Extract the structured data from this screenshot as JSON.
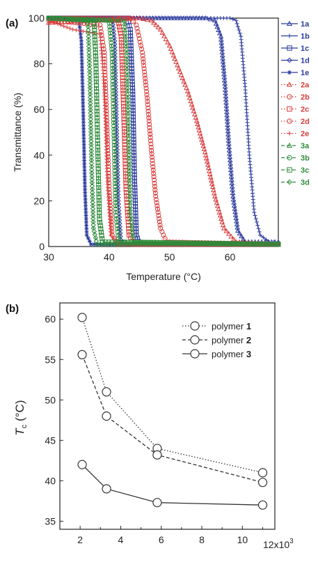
{
  "chart_data": [
    {
      "panel": "(a)",
      "type": "line",
      "xlabel": "Temperature (°C)",
      "ylabel": "Transmittance (%)",
      "xlim": [
        30,
        68
      ],
      "ylim": [
        0,
        100
      ],
      "x_ticks": [
        30,
        40,
        50,
        60
      ],
      "y_ticks": [
        0,
        20,
        40,
        60,
        80,
        100
      ],
      "legend_position": "right-outside",
      "series": [
        {
          "name": "1a",
          "color": "#2b3a9c",
          "marker": "triangle",
          "dash": "solid",
          "values": [
            {
              "x": 30,
              "y": 100
            },
            {
              "x": 56,
              "y": 100
            },
            {
              "x": 57.5,
              "y": 99
            },
            {
              "x": 58.5,
              "y": 92
            },
            {
              "x": 59.2,
              "y": 70
            },
            {
              "x": 59.8,
              "y": 45
            },
            {
              "x": 60.5,
              "y": 22
            },
            {
              "x": 61.3,
              "y": 7
            },
            {
              "x": 62.5,
              "y": 2
            },
            {
              "x": 68,
              "y": 2
            }
          ]
        },
        {
          "name": "1b",
          "color": "#2b3a9c",
          "marker": "plus",
          "dash": "solid",
          "values": [
            {
              "x": 30,
              "y": 100
            },
            {
              "x": 60,
              "y": 100
            },
            {
              "x": 61,
              "y": 99
            },
            {
              "x": 61.8,
              "y": 92
            },
            {
              "x": 62.5,
              "y": 70
            },
            {
              "x": 63.2,
              "y": 40
            },
            {
              "x": 64,
              "y": 15
            },
            {
              "x": 65,
              "y": 5
            },
            {
              "x": 66.5,
              "y": 2
            },
            {
              "x": 68,
              "y": 2
            }
          ]
        },
        {
          "name": "1c",
          "color": "#2b3a9c",
          "marker": "square",
          "dash": "solid",
          "values": [
            {
              "x": 30,
              "y": 100
            },
            {
              "x": 43,
              "y": 100
            },
            {
              "x": 43.5,
              "y": 95
            },
            {
              "x": 43.9,
              "y": 68
            },
            {
              "x": 44.2,
              "y": 30
            },
            {
              "x": 44.5,
              "y": 5
            },
            {
              "x": 45,
              "y": 1
            },
            {
              "x": 68,
              "y": 1
            }
          ]
        },
        {
          "name": "1d",
          "color": "#2b3a9c",
          "marker": "diamond",
          "dash": "solid",
          "values": [
            {
              "x": 30,
              "y": 100
            },
            {
              "x": 40.5,
              "y": 100
            },
            {
              "x": 40.9,
              "y": 90
            },
            {
              "x": 41.2,
              "y": 55
            },
            {
              "x": 41.5,
              "y": 20
            },
            {
              "x": 41.9,
              "y": 3
            },
            {
              "x": 43,
              "y": 1
            },
            {
              "x": 68,
              "y": 1
            }
          ]
        },
        {
          "name": "1e",
          "color": "#2b3a9c",
          "marker": "star",
          "dash": "solid",
          "values": [
            {
              "x": 30,
              "y": 100
            },
            {
              "x": 35,
              "y": 99
            },
            {
              "x": 35.4,
              "y": 90
            },
            {
              "x": 35.7,
              "y": 60
            },
            {
              "x": 36,
              "y": 25
            },
            {
              "x": 36.3,
              "y": 5
            },
            {
              "x": 37,
              "y": 1
            },
            {
              "x": 68,
              "y": 1
            }
          ]
        },
        {
          "name": "2a",
          "color": "#d93a3a",
          "marker": "triangle",
          "dash": "dot",
          "values": [
            {
              "x": 30,
              "y": 98
            },
            {
              "x": 45,
              "y": 100
            },
            {
              "x": 47,
              "y": 99
            },
            {
              "x": 48.5,
              "y": 95
            },
            {
              "x": 50,
              "y": 88
            },
            {
              "x": 51.5,
              "y": 78
            },
            {
              "x": 53,
              "y": 68
            },
            {
              "x": 54.5,
              "y": 55
            },
            {
              "x": 56,
              "y": 40
            },
            {
              "x": 57.5,
              "y": 22
            },
            {
              "x": 59,
              "y": 8
            },
            {
              "x": 61,
              "y": 2
            },
            {
              "x": 68,
              "y": 1
            }
          ]
        },
        {
          "name": "2b",
          "color": "#d93a3a",
          "marker": "circle",
          "dash": "dot",
          "values": [
            {
              "x": 30,
              "y": 100
            },
            {
              "x": 43.5,
              "y": 100
            },
            {
              "x": 44.5,
              "y": 97
            },
            {
              "x": 45.5,
              "y": 85
            },
            {
              "x": 46.3,
              "y": 65
            },
            {
              "x": 47,
              "y": 42
            },
            {
              "x": 47.7,
              "y": 22
            },
            {
              "x": 48.5,
              "y": 8
            },
            {
              "x": 49.5,
              "y": 2
            },
            {
              "x": 68,
              "y": 1
            }
          ]
        },
        {
          "name": "2c",
          "color": "#d93a3a",
          "marker": "square",
          "dash": "dot",
          "values": [
            {
              "x": 30,
              "y": 100
            },
            {
              "x": 41.5,
              "y": 99
            },
            {
              "x": 42,
              "y": 92
            },
            {
              "x": 42.4,
              "y": 60
            },
            {
              "x": 42.8,
              "y": 25
            },
            {
              "x": 43.3,
              "y": 5
            },
            {
              "x": 44,
              "y": 1
            },
            {
              "x": 68,
              "y": 1
            }
          ]
        },
        {
          "name": "2d",
          "color": "#d93a3a",
          "marker": "circle",
          "dash": "dot",
          "values": [
            {
              "x": 30,
              "y": 99
            },
            {
              "x": 38.5,
              "y": 97
            },
            {
              "x": 39.2,
              "y": 85
            },
            {
              "x": 39.6,
              "y": 55
            },
            {
              "x": 40,
              "y": 25
            },
            {
              "x": 40.5,
              "y": 5
            },
            {
              "x": 41.5,
              "y": 1
            },
            {
              "x": 68,
              "y": 1
            }
          ]
        },
        {
          "name": "2e",
          "color": "#d93a3a",
          "marker": "plus",
          "dash": "dot",
          "values": [
            {
              "x": 30,
              "y": 99
            },
            {
              "x": 34,
              "y": 95
            },
            {
              "x": 38.5,
              "y": 93
            },
            {
              "x": 39.2,
              "y": 70
            },
            {
              "x": 39.7,
              "y": 30
            },
            {
              "x": 40.3,
              "y": 5
            },
            {
              "x": 41.5,
              "y": 1
            },
            {
              "x": 68,
              "y": 1
            }
          ]
        },
        {
          "name": "3a",
          "color": "#2e8b3a",
          "marker": "triangle",
          "dash": "dash",
          "values": [
            {
              "x": 30,
              "y": 100
            },
            {
              "x": 42.5,
              "y": 99
            },
            {
              "x": 42.9,
              "y": 85
            },
            {
              "x": 43.2,
              "y": 50
            },
            {
              "x": 43.5,
              "y": 15
            },
            {
              "x": 44,
              "y": 2
            },
            {
              "x": 68,
              "y": 1
            }
          ]
        },
        {
          "name": "3b",
          "color": "#2e8b3a",
          "marker": "circle",
          "dash": "dash",
          "values": [
            {
              "x": 30,
              "y": 100
            },
            {
              "x": 40,
              "y": 99
            },
            {
              "x": 40.5,
              "y": 85
            },
            {
              "x": 40.8,
              "y": 50
            },
            {
              "x": 41.1,
              "y": 15
            },
            {
              "x": 41.6,
              "y": 2
            },
            {
              "x": 68,
              "y": 1
            }
          ]
        },
        {
          "name": "3c",
          "color": "#2e8b3a",
          "marker": "square",
          "dash": "dash",
          "values": [
            {
              "x": 30,
              "y": 100
            },
            {
              "x": 37.5,
              "y": 99
            },
            {
              "x": 37.8,
              "y": 82
            },
            {
              "x": 38.1,
              "y": 45
            },
            {
              "x": 38.4,
              "y": 12
            },
            {
              "x": 38.9,
              "y": 2
            },
            {
              "x": 68,
              "y": 1
            }
          ]
        },
        {
          "name": "3d",
          "color": "#2e8b3a",
          "marker": "diamond",
          "dash": "dash",
          "values": [
            {
              "x": 30,
              "y": 100
            },
            {
              "x": 36.5,
              "y": 99
            },
            {
              "x": 36.8,
              "y": 75
            },
            {
              "x": 37.1,
              "y": 35
            },
            {
              "x": 37.4,
              "y": 8
            },
            {
              "x": 38,
              "y": 1
            },
            {
              "x": 68,
              "y": 1
            }
          ]
        }
      ]
    },
    {
      "panel": "(b)",
      "type": "line",
      "xlabel": "",
      "ylabel_main": "T",
      "ylabel_sub": "c",
      "ylabel_unit": " (°C)",
      "x_multiplier": "12x10",
      "x_multiplier_exp": "3",
      "xlim": [
        1,
        11.6
      ],
      "ylim": [
        34,
        62
      ],
      "x_ticks": [
        2,
        4,
        6,
        8,
        10
      ],
      "y_ticks": [
        35,
        40,
        45,
        50,
        55,
        60
      ],
      "legend_position": "top-right",
      "series": [
        {
          "label": "polymer",
          "label_num": "1",
          "dash": "dot",
          "color": "#333333",
          "values": [
            {
              "x": 2.1,
              "y": 60.2
            },
            {
              "x": 3.3,
              "y": 51.0
            },
            {
              "x": 5.8,
              "y": 44.0
            },
            {
              "x": 11.0,
              "y": 41.0
            }
          ]
        },
        {
          "label": "polymer",
          "label_num": "2",
          "dash": "dash",
          "color": "#333333",
          "values": [
            {
              "x": 2.1,
              "y": 55.6
            },
            {
              "x": 3.3,
              "y": 48.0
            },
            {
              "x": 5.8,
              "y": 43.2
            },
            {
              "x": 11.0,
              "y": 39.8
            }
          ]
        },
        {
          "label": "polymer",
          "label_num": "3",
          "dash": "solid",
          "color": "#333333",
          "values": [
            {
              "x": 2.1,
              "y": 42.0
            },
            {
              "x": 3.3,
              "y": 39.0
            },
            {
              "x": 5.8,
              "y": 37.3
            },
            {
              "x": 11.0,
              "y": 37.0
            }
          ]
        }
      ]
    }
  ]
}
